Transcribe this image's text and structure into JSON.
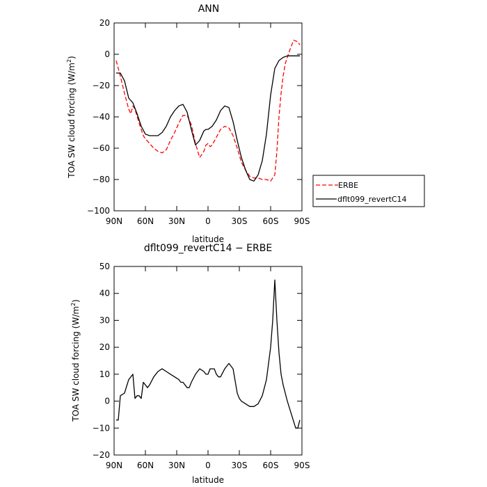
{
  "chart_data": [
    {
      "type": "line",
      "title": "ANN",
      "xlabel": "latitude",
      "ylabel": "TOA SW cloud forcing (W/m²)",
      "ylabel_parts": {
        "main": "TOA SW cloud forcing (W/m",
        "sup": "2",
        "tail": ")"
      },
      "xlim": [
        90,
        -90
      ],
      "ylim": [
        -100,
        20
      ],
      "x_ticks": [
        90,
        60,
        30,
        0,
        -30,
        -60,
        -90
      ],
      "x_tick_labels": [
        "90N",
        "60N",
        "30N",
        "0",
        "30S",
        "60S",
        "90S"
      ],
      "y_ticks": [
        -100,
        -80,
        -60,
        -40,
        -20,
        0,
        20
      ],
      "y_tick_labels": [
        "−100",
        "−80",
        "−60",
        "−40",
        "−20",
        "0",
        "20"
      ],
      "legend": {
        "placement": "right, outside plot"
      },
      "series": [
        {
          "name": "ERBE",
          "color": "#ff0000",
          "dash": "dashed",
          "x": [
            88,
            84,
            80,
            76,
            74,
            72,
            70,
            66,
            62,
            60,
            56,
            52,
            48,
            44,
            40,
            36,
            32,
            28,
            24,
            20,
            16,
            12,
            8,
            4,
            2,
            0,
            -2,
            -4,
            -8,
            -12,
            -16,
            -20,
            -24,
            -28,
            -32,
            -36,
            -40,
            -44,
            -48,
            -52,
            -56,
            -60,
            -62,
            -64,
            -66,
            -68,
            -70,
            -72,
            -74,
            -78,
            -82,
            -86,
            -88
          ],
          "y": [
            -4,
            -14,
            -25,
            -35,
            -38,
            -33,
            -35,
            -44,
            -52,
            -54,
            -57,
            -60,
            -62,
            -63,
            -61,
            -55,
            -50,
            -44,
            -39,
            -39,
            -45,
            -57,
            -66,
            -62,
            -58,
            -57,
            -59,
            -58,
            -53,
            -48,
            -46,
            -47,
            -52,
            -60,
            -69,
            -74,
            -78,
            -79,
            -79,
            -80,
            -80,
            -81,
            -79,
            -77,
            -62,
            -40,
            -25,
            -14,
            -6,
            2,
            9,
            8,
            6
          ]
        },
        {
          "name": "dflt099_revertC14",
          "color": "#000000",
          "dash": "solid",
          "x": [
            88,
            84,
            80,
            76,
            72,
            68,
            64,
            60,
            56,
            52,
            48,
            44,
            40,
            36,
            32,
            28,
            24,
            20,
            16,
            12,
            8,
            4,
            2,
            0,
            -2,
            -4,
            -8,
            -12,
            -16,
            -20,
            -24,
            -28,
            -32,
            -36,
            -40,
            -44,
            -48,
            -52,
            -56,
            -60,
            -64,
            -68,
            -72,
            -76,
            -80,
            -84,
            -88
          ],
          "y": [
            -12,
            -12,
            -17,
            -28,
            -31,
            -38,
            -46,
            -51,
            -52,
            -52,
            -52,
            -50,
            -46,
            -40,
            -36,
            -33,
            -32,
            -37,
            -48,
            -58,
            -55,
            -49,
            -48,
            -48,
            -47,
            -46,
            -42,
            -36,
            -33,
            -34,
            -43,
            -55,
            -66,
            -74,
            -80,
            -81,
            -77,
            -68,
            -51,
            -26,
            -9,
            -4,
            -2,
            -1,
            -1,
            -1,
            -1
          ]
        }
      ]
    },
    {
      "type": "line",
      "title": "dflt099_revertC14 − ERBE",
      "xlabel": "latitude",
      "ylabel": "TOA SW cloud forcing (W/m²)",
      "ylabel_parts": {
        "main": "TOA SW cloud forcing (W/m",
        "sup": "2",
        "tail": ")"
      },
      "xlim": [
        90,
        -90
      ],
      "ylim": [
        -20,
        50
      ],
      "x_ticks": [
        90,
        60,
        30,
        0,
        -30,
        -60,
        -90
      ],
      "x_tick_labels": [
        "90N",
        "60N",
        "30N",
        "0",
        "30S",
        "60S",
        "90S"
      ],
      "y_ticks": [
        -20,
        -10,
        0,
        10,
        20,
        30,
        40,
        50
      ],
      "y_tick_labels": [
        "−20",
        "−10",
        "0",
        "10",
        "20",
        "30",
        "40",
        "50"
      ],
      "series": [
        {
          "color": "#000000",
          "dash": "solid",
          "x": [
            88,
            86,
            84,
            80,
            76,
            72,
            70,
            68,
            66,
            64,
            62,
            60,
            58,
            56,
            52,
            48,
            44,
            40,
            36,
            32,
            28,
            26,
            24,
            22,
            20,
            18,
            16,
            12,
            8,
            4,
            2,
            0,
            -2,
            -4,
            -6,
            -8,
            -10,
            -12,
            -16,
            -20,
            -24,
            -28,
            -30,
            -32,
            -36,
            -40,
            -44,
            -48,
            -52,
            -56,
            -60,
            -62,
            -64,
            -66,
            -68,
            -70,
            -72,
            -76,
            -80,
            -84,
            -86,
            -88
          ],
          "y": [
            -7,
            -7,
            2,
            3,
            8,
            10,
            1,
            2,
            2,
            1,
            7,
            6,
            5,
            6,
            9,
            11,
            12,
            11,
            10,
            9,
            8,
            7,
            7,
            6,
            5,
            5,
            7,
            10,
            12,
            11,
            10,
            10,
            12,
            12,
            12,
            10,
            9,
            9,
            12,
            14,
            12,
            3,
            1,
            0,
            -1,
            -2,
            -2,
            -1,
            2,
            8,
            20,
            30,
            45,
            30,
            18,
            10,
            6,
            0,
            -5,
            -10,
            -10,
            -7
          ]
        }
      ]
    }
  ]
}
